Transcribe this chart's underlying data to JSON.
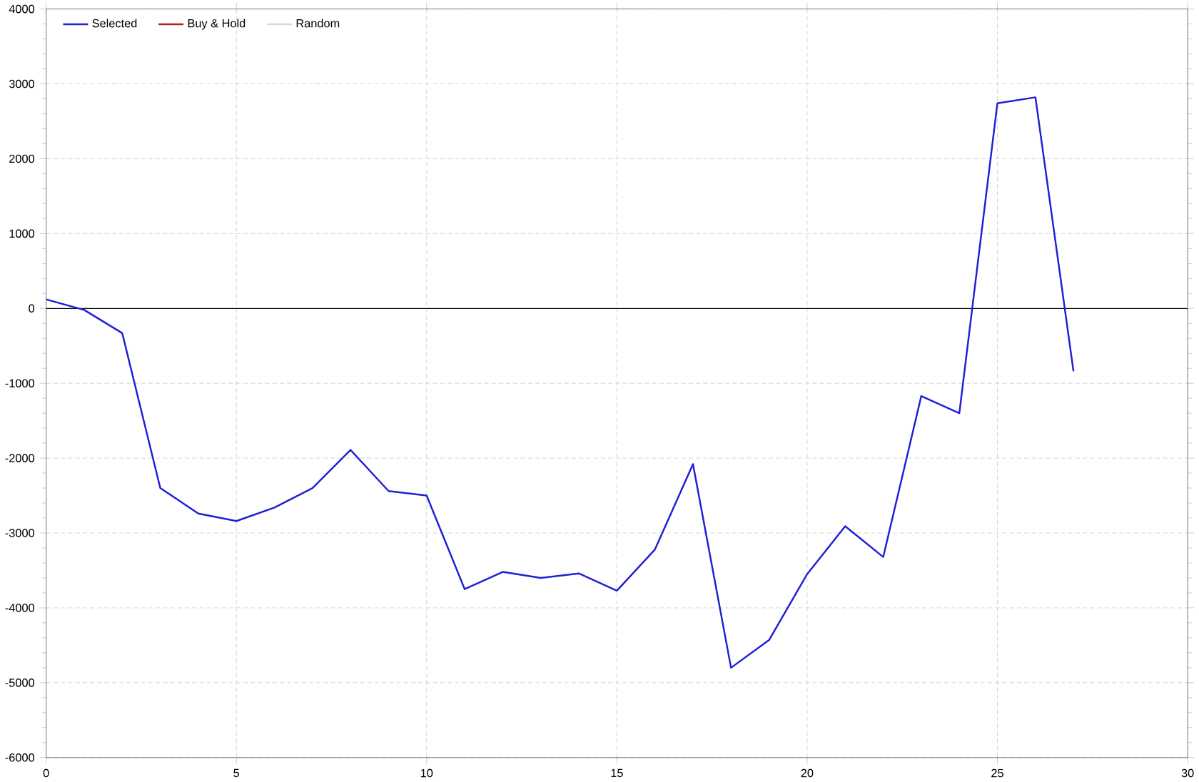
{
  "chart_data": {
    "type": "line",
    "x": [
      0,
      1,
      2,
      3,
      4,
      5,
      6,
      7,
      8,
      9,
      10,
      11,
      12,
      13,
      14,
      15,
      16,
      17,
      18,
      19,
      20,
      21,
      22,
      23,
      24,
      25,
      26,
      27
    ],
    "series": [
      {
        "name": "Selected",
        "color": "#1f1fd6",
        "values": [
          120,
          -20,
          -330,
          -2400,
          -2740,
          -2840,
          -2660,
          -2400,
          -1890,
          -2440,
          -2500,
          -3750,
          -3520,
          -3600,
          -3540,
          -3770,
          -3220,
          -2080,
          -4800,
          -4430,
          -3550,
          -2910,
          -3320,
          -1170,
          -1400,
          2740,
          2820,
          -840
        ]
      },
      {
        "name": "Buy & Hold",
        "color": "#b22222",
        "values": [
          null,
          null,
          null,
          null,
          null,
          null,
          null,
          null,
          null,
          null,
          null,
          null,
          null,
          null,
          null,
          null,
          null,
          null,
          null,
          null,
          null,
          null,
          null,
          null,
          null,
          null,
          null,
          null
        ]
      },
      {
        "name": "Random",
        "color": "#d8d8d8",
        "values": [
          null,
          null,
          null,
          null,
          null,
          null,
          null,
          null,
          null,
          null,
          null,
          null,
          null,
          null,
          null,
          null,
          null,
          null,
          null,
          null,
          null,
          null,
          null,
          null,
          null,
          null,
          null,
          null
        ]
      }
    ],
    "xlim": [
      0,
      30
    ],
    "xticks": [
      0,
      5,
      10,
      15,
      20,
      25,
      30
    ],
    "ylim": [
      -6000,
      4000
    ],
    "yticks": [
      -6000,
      -5000,
      -4000,
      -3000,
      -2000,
      -1000,
      0,
      1000,
      2000,
      3000,
      4000
    ],
    "ref_lines": [
      {
        "axis": "y",
        "value": 0,
        "color": "#000000"
      }
    ],
    "grid": true,
    "legend": "top left",
    "line_style": "solid",
    "marker": "none"
  }
}
